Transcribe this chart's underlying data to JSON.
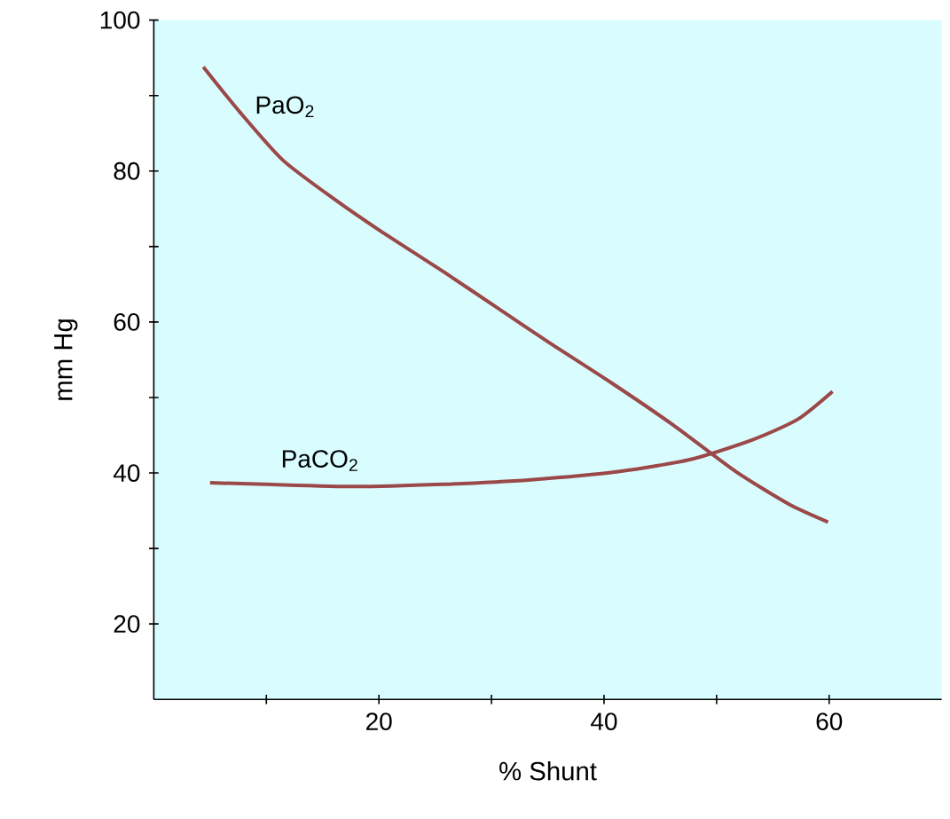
{
  "chart_data": {
    "type": "line",
    "xlabel": "% Shunt",
    "ylabel": "mm Hg",
    "xlim": [
      0,
      70
    ],
    "ylim": [
      10,
      100
    ],
    "xticks": [
      {
        "value": 10,
        "label": null
      },
      20,
      {
        "value": 30,
        "label": null
      },
      40,
      {
        "value": 50,
        "label": null
      },
      60
    ],
    "yticks": [
      20,
      {
        "value": 30,
        "label": null
      },
      40,
      {
        "value": 50,
        "label": null
      },
      60,
      {
        "value": 70,
        "label": null
      },
      80,
      {
        "value": 90,
        "label": null
      },
      100
    ],
    "grid": false,
    "legend": false,
    "marker": "none",
    "line_style": "solid",
    "series": [
      {
        "name": "PaO$_{2}$",
        "color": "#9b4848",
        "x": [
          4.4,
          7.6,
          11.5,
          16.2,
          20.2,
          25.7,
          30.4,
          35.1,
          40.6,
          46.1,
          51.7,
          56.4,
          59.9
        ],
        "values": [
          93.8,
          87.9,
          81.4,
          76.1,
          72,
          66.7,
          62,
          57.3,
          52,
          46.4,
          40.2,
          35.9,
          33.5
        ]
      },
      {
        "name": "PaCO$_{2}$",
        "color": "#9b4848",
        "x": [
          5.0,
          9.9,
          17.8,
          25.7,
          33.5,
          41.4,
          47.7,
          53.2,
          57.2,
          60.3
        ],
        "values": [
          38.7,
          38.5,
          38.2,
          38.5,
          39.1,
          40.2,
          41.8,
          44.4,
          47.1,
          50.8
        ]
      }
    ]
  }
}
